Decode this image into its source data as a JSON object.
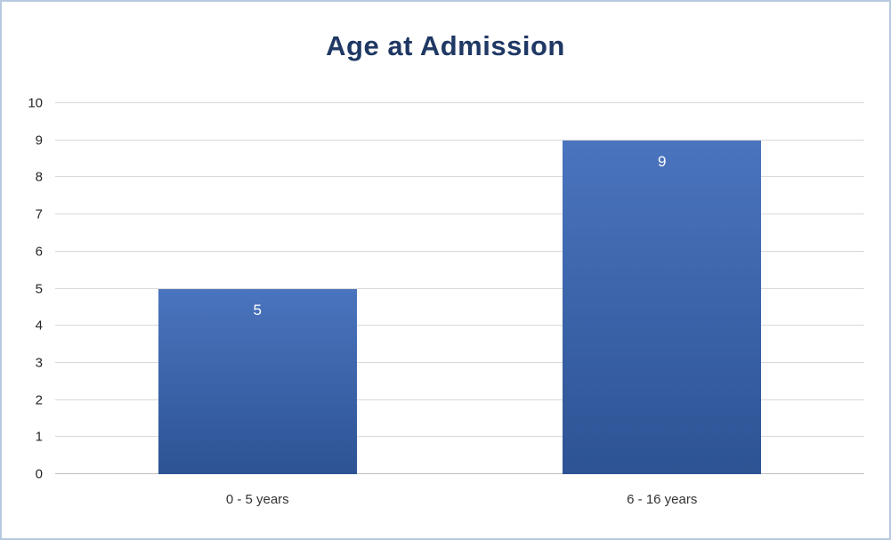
{
  "chart_data": {
    "type": "bar",
    "title": "Age at Admission",
    "categories": [
      "0 - 5 years",
      "6 - 16 years"
    ],
    "values": [
      5,
      9
    ],
    "xlabel": "",
    "ylabel": "",
    "ylim": [
      0,
      10
    ],
    "ytick_step": 1,
    "grid": true,
    "legend": "none",
    "colors": {
      "bar_top": "#4a74be",
      "bar_bottom": "#2d5394",
      "title": "#1f3864",
      "gridline": "#d9d9d9",
      "data_label": "#ffffff",
      "frame_border": "#b7c9de"
    }
  }
}
